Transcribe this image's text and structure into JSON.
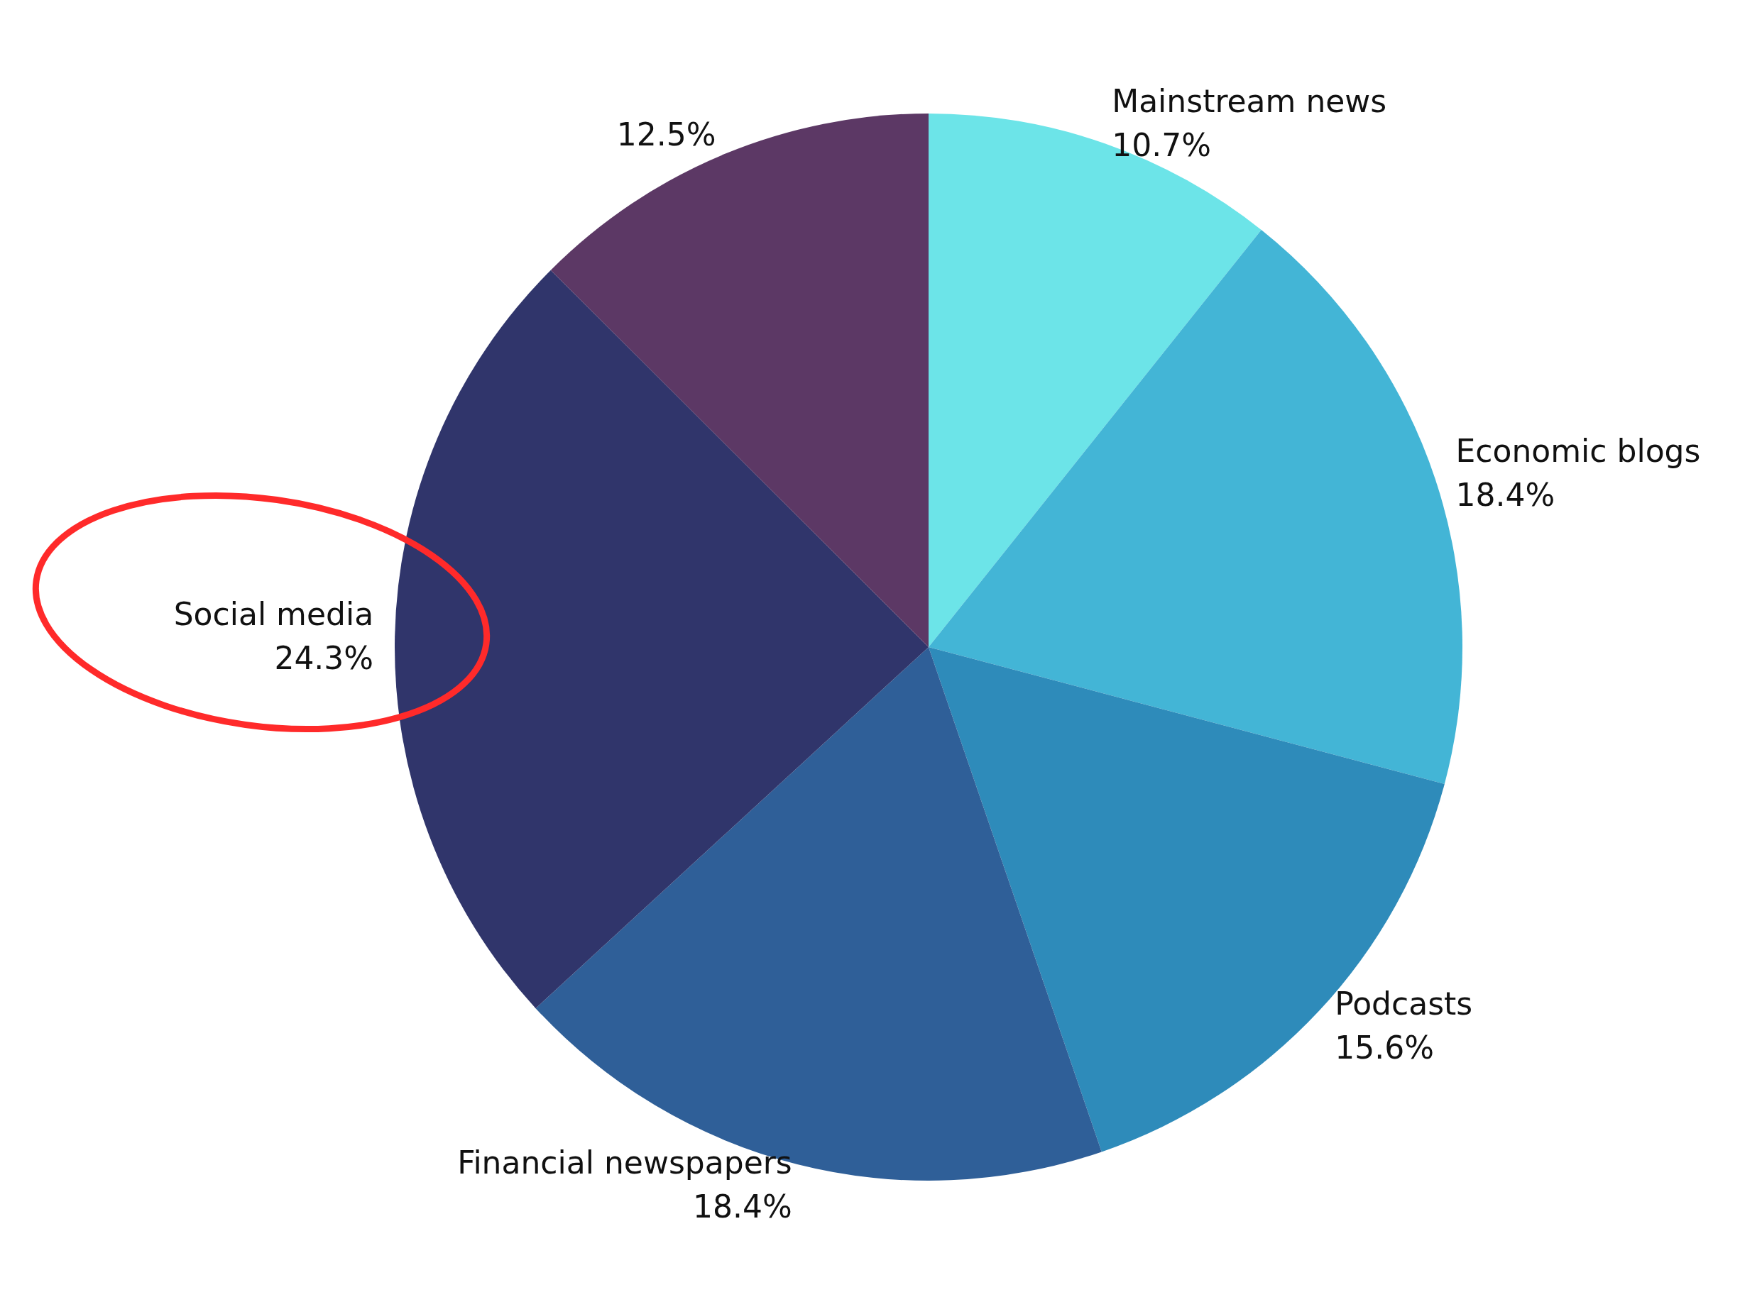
{
  "chart_data": {
    "type": "pie",
    "categories": [
      "Mainstream news",
      "Economic blogs",
      "Podcasts",
      "Financial newspapers",
      "Social media",
      null
    ],
    "values": [
      10.7,
      18.4,
      15.6,
      18.4,
      24.3,
      12.5
    ],
    "colors": [
      "#6ce4e8",
      "#43b5d6",
      "#2e8bba",
      "#2f5f98",
      "#30356b",
      "#5c3865"
    ],
    "value_labels": [
      "10.7%",
      "18.4%",
      "15.6%",
      "18.4%",
      "24.3%",
      "12.5%"
    ],
    "legend": false
  }
}
